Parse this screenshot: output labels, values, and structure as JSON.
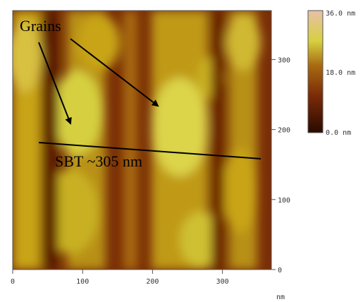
{
  "annotations": {
    "grains": "Grains",
    "measurement": "SBT ~305 nm"
  },
  "x_axis": {
    "ticks": [
      "0",
      "100",
      "200",
      "300"
    ],
    "unit": "nm"
  },
  "y_axis": {
    "ticks": [
      "0",
      "100",
      "200",
      "300"
    ]
  },
  "colorbar": {
    "labels": [
      "36.0 nm",
      "18.0 nm",
      "0.0 nm"
    ]
  }
}
